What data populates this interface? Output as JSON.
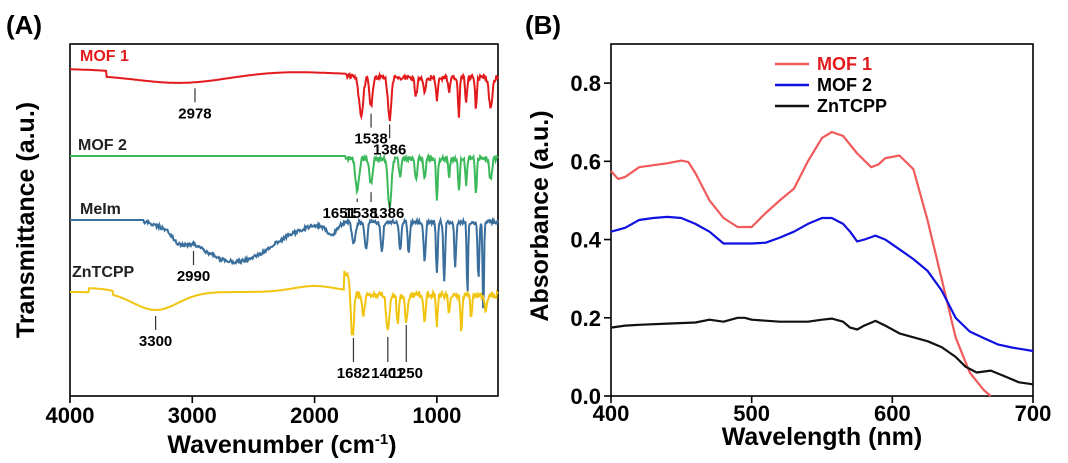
{
  "panels": {
    "a_label": "(A)",
    "b_label": "(B)"
  },
  "chart_data": [
    {
      "type": "line",
      "xlabel": "Wavenumber (cm",
      "xlabel_sup": "-1",
      "xlabel_end": ")",
      "ylabel": "Transmittance (a.u.)",
      "xlim": [
        4000,
        500
      ],
      "xticks": [
        "4000",
        "3000",
        "2000",
        "1000"
      ],
      "xtick_values": [
        4000,
        3000,
        2000,
        1000
      ],
      "series": [
        {
          "name": "MOF 1",
          "color": "#e31a1c",
          "annotations": [
            {
              "text": "2978",
              "x": 2978
            },
            {
              "text": "1538",
              "x": 1538
            },
            {
              "text": "1386",
              "x": 1386
            }
          ]
        },
        {
          "name": "MOF 2",
          "color": "#3cb95a",
          "annotations": [
            {
              "text": "1651",
              "x": 1651
            },
            {
              "text": "1538",
              "x": 1538
            },
            {
              "text": "1386",
              "x": 1386
            }
          ]
        },
        {
          "name": "MeIm",
          "color": "#3a6e9c",
          "annotations": [
            {
              "text": "2990",
              "x": 2990
            }
          ]
        },
        {
          "name": "ZnTCPP",
          "color": "#f1c40f",
          "annotations": [
            {
              "text": "3300",
              "x": 3300
            },
            {
              "text": "1682",
              "x": 1682
            },
            {
              "text": "1401",
              "x": 1401
            },
            {
              "text": "1250",
              "x": 1250
            }
          ]
        }
      ]
    },
    {
      "type": "line",
      "xlabel": "Wavelength (nm)",
      "ylabel": "Absorbance (a.u.)",
      "xlim": [
        400,
        700
      ],
      "ylim": [
        0,
        0.9
      ],
      "xticks": [
        "400",
        "500",
        "600",
        "700"
      ],
      "xtick_values": [
        400,
        500,
        600,
        700
      ],
      "yticks": [
        "0.0",
        "0.2",
        "0.4",
        "0.6",
        "0.8"
      ],
      "ytick_values": [
        0,
        0.2,
        0.4,
        0.6,
        0.8
      ],
      "legend_position": "top-center",
      "series": [
        {
          "name": "MOF 1",
          "color": "#f05a5a",
          "x": [
            400,
            405,
            410,
            420,
            430,
            440,
            450,
            455,
            460,
            470,
            480,
            490,
            500,
            510,
            520,
            530,
            540,
            550,
            557,
            565,
            575,
            585,
            590,
            595,
            605,
            615,
            625,
            635,
            645,
            655,
            665,
            670
          ],
          "y": [
            0.575,
            0.555,
            0.56,
            0.585,
            0.59,
            0.595,
            0.602,
            0.598,
            0.57,
            0.5,
            0.455,
            0.432,
            0.432,
            0.468,
            0.5,
            0.53,
            0.6,
            0.66,
            0.675,
            0.665,
            0.62,
            0.585,
            0.592,
            0.608,
            0.615,
            0.58,
            0.45,
            0.3,
            0.15,
            0.06,
            0.015,
            0.0
          ]
        },
        {
          "name": "MOF 2",
          "color": "#1010e0",
          "x": [
            400,
            410,
            420,
            430,
            440,
            450,
            460,
            470,
            480,
            490,
            500,
            510,
            520,
            530,
            540,
            550,
            557,
            565,
            570,
            575,
            580,
            588,
            595,
            605,
            615,
            625,
            635,
            645,
            655,
            665,
            675,
            685,
            700
          ],
          "y": [
            0.42,
            0.43,
            0.45,
            0.455,
            0.458,
            0.455,
            0.44,
            0.42,
            0.39,
            0.39,
            0.39,
            0.392,
            0.405,
            0.42,
            0.44,
            0.455,
            0.455,
            0.44,
            0.42,
            0.395,
            0.4,
            0.41,
            0.4,
            0.375,
            0.35,
            0.32,
            0.27,
            0.2,
            0.165,
            0.148,
            0.132,
            0.124,
            0.115
          ]
        },
        {
          "name": "ZnTCPP",
          "color": "#111111",
          "x": [
            400,
            410,
            420,
            440,
            460,
            470,
            480,
            490,
            495,
            500,
            520,
            540,
            550,
            557,
            565,
            570,
            575,
            580,
            588,
            595,
            605,
            615,
            625,
            635,
            645,
            652,
            660,
            670,
            680,
            690,
            700
          ],
          "y": [
            0.175,
            0.18,
            0.182,
            0.185,
            0.188,
            0.195,
            0.19,
            0.2,
            0.2,
            0.195,
            0.19,
            0.19,
            0.195,
            0.198,
            0.19,
            0.175,
            0.17,
            0.18,
            0.192,
            0.18,
            0.16,
            0.15,
            0.14,
            0.125,
            0.1,
            0.075,
            0.06,
            0.065,
            0.05,
            0.035,
            0.03
          ]
        }
      ]
    }
  ]
}
